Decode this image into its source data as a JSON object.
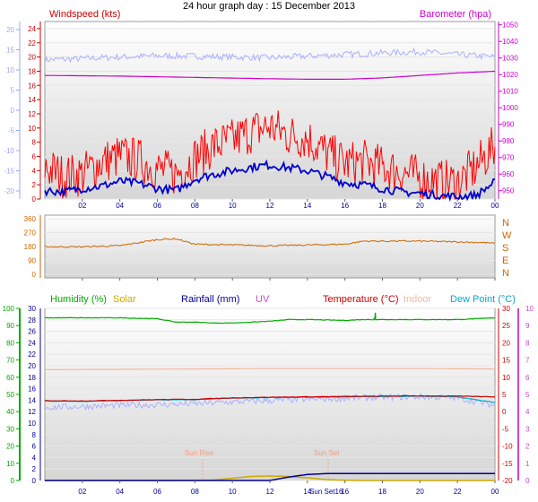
{
  "page_title": "24 hour graph day : 15 December 2013",
  "chart_data": [
    {
      "type": "line",
      "title": "24 hour graph day : 15 December 2013",
      "x_tick_labels": [
        "02",
        "04",
        "06",
        "08",
        "10",
        "12",
        "14",
        "16",
        "18",
        "20",
        "22",
        "00"
      ],
      "left_axis": {
        "label": "Windspeed (kts)",
        "ticks": [
          "24",
          "22",
          "20",
          "18",
          "16",
          "14",
          "12",
          "10",
          "8",
          "6",
          "4",
          "2",
          "0"
        ],
        "ylim": [
          0,
          25
        ]
      },
      "right_axis": {
        "label": "Barometer (hpa)",
        "ticks": [
          "1050",
          "1040",
          "1030",
          "1020",
          "1010",
          "1000",
          "990",
          "980",
          "970",
          "960",
          "950"
        ],
        "ylim": [
          945,
          1052
        ]
      },
      "outer_left_axis": {
        "ticks": [
          "20",
          "15",
          "10",
          "5",
          "0",
          "-5",
          "-10",
          "-15",
          "-20"
        ]
      },
      "series": [
        {
          "name": "Barometer (hpa)",
          "color": "#cc00cc",
          "axis": "right",
          "x": [
            0,
            2,
            4,
            6,
            8,
            10,
            12,
            14,
            16,
            18,
            20,
            22,
            24
          ],
          "y": [
            1019.5,
            1019.3,
            1019.1,
            1018.7,
            1018.3,
            1017.9,
            1017.5,
            1017.2,
            1017.2,
            1018.0,
            1019.5,
            1021.0,
            1022.0
          ]
        },
        {
          "name": "wind_gust",
          "color": "#ff0000",
          "axis": "left",
          "x": [
            0,
            1,
            2,
            3,
            4,
            5,
            6,
            7,
            8,
            9,
            10,
            11,
            12,
            13,
            14,
            15,
            16,
            17,
            18,
            19,
            20,
            21,
            22,
            23,
            24
          ],
          "y": [
            4.5,
            3.2,
            3.5,
            5.2,
            6.0,
            5.5,
            4.2,
            3.5,
            5.8,
            7.5,
            8.2,
            9.5,
            10.2,
            9.0,
            8.6,
            6.5,
            5.0,
            5.3,
            4.5,
            3.8,
            3.0,
            2.5,
            2.3,
            4.5,
            7.5
          ]
        },
        {
          "name": "wind_avg",
          "color": "#0000cc",
          "axis": "left",
          "x": [
            0,
            1,
            2,
            3,
            4,
            5,
            6,
            7,
            8,
            9,
            10,
            11,
            12,
            13,
            14,
            15,
            16,
            17,
            18,
            19,
            20,
            21,
            22,
            23,
            24
          ],
          "y": [
            1.2,
            1.0,
            1.5,
            1.8,
            2.5,
            2.2,
            1.5,
            1.2,
            2.8,
            3.5,
            4.0,
            4.5,
            4.8,
            4.4,
            4.0,
            3.2,
            2.3,
            2.0,
            1.5,
            1.0,
            0.8,
            0.5,
            0.3,
            0.5,
            2.4
          ]
        },
        {
          "name": "outer_scale_trace",
          "color": "#aab0ff",
          "axis": "outer",
          "x": [
            0,
            2,
            4,
            6,
            8,
            10,
            12,
            14,
            16,
            18,
            20,
            22,
            24
          ],
          "y": [
            12.5,
            12.8,
            13.2,
            13.5,
            13.4,
            13.2,
            13.0,
            13.4,
            13.8,
            14.2,
            14.5,
            13.8,
            13.2
          ]
        }
      ]
    },
    {
      "type": "line",
      "left_axis": {
        "ticks": [
          "360",
          "270",
          "180",
          "90",
          "0"
        ],
        "ylim": [
          0,
          360
        ]
      },
      "right_axis": {
        "ticks": [
          "N",
          "W",
          "S",
          "E",
          "N"
        ]
      },
      "series": [
        {
          "name": "wind_direction",
          "color": "#cc6600",
          "x": [
            0,
            2,
            4,
            5,
            6,
            7,
            8,
            10,
            12,
            14,
            16,
            17,
            18,
            20,
            22,
            23.5,
            24
          ],
          "y": [
            178,
            178,
            185,
            205,
            225,
            230,
            195,
            190,
            185,
            190,
            195,
            215,
            215,
            215,
            210,
            205,
            200
          ]
        }
      ]
    },
    {
      "type": "line",
      "legend": [
        {
          "label": "Humidity (%)",
          "color": "#00aa00"
        },
        {
          "label": "Solar",
          "color": "#ccaa00"
        },
        {
          "label": "Rainfall (mm)",
          "color": "#000099"
        },
        {
          "label": "UV",
          "color": "#cc44cc"
        },
        {
          "label": "Temperature (°C)",
          "color": "#cc0000"
        },
        {
          "label": "Indoor",
          "color": "#f4b8a0"
        },
        {
          "label": "Dew Point (°C)",
          "color": "#00aacc"
        }
      ],
      "annotations": [
        "Sun Rise",
        "Sun Set",
        "Sun Set16"
      ],
      "left_axis_1": {
        "ticks": [
          "100",
          "90",
          "80",
          "70",
          "60",
          "50",
          "40",
          "30",
          "20",
          "10",
          "0"
        ]
      },
      "left_axis_2": {
        "ticks": [
          "30",
          "28",
          "26",
          "24",
          "22",
          "20",
          "18",
          "16",
          "14",
          "12",
          "10",
          "8",
          "6",
          "4",
          "2",
          "0"
        ]
      },
      "right_axis_1": {
        "ticks": [
          "30",
          "25",
          "20",
          "15",
          "10",
          "5",
          "0",
          "-5",
          "-10",
          "-15",
          "-20"
        ]
      },
      "right_axis_2": {
        "ticks": [
          "10",
          "9",
          "8",
          "7",
          "6",
          "5",
          "4",
          "3",
          "2",
          "1",
          "0"
        ]
      },
      "series": [
        {
          "name": "Humidity (%)",
          "color": "#00aa00",
          "axis": "humidity",
          "x": [
            0,
            4,
            6,
            7,
            8,
            9,
            10,
            11,
            12,
            13,
            14,
            16,
            17,
            18,
            20,
            22,
            24
          ],
          "y": [
            94.5,
            94.5,
            94.0,
            92.0,
            92.0,
            91.5,
            91.5,
            92.0,
            92.5,
            93.5,
            93.5,
            93.0,
            93.5,
            93.5,
            93.5,
            93.5,
            94.5
          ]
        },
        {
          "name": "Indoor",
          "color": "#f4b8a0",
          "axis": "temp",
          "x": [
            0,
            4,
            8,
            12,
            16,
            20,
            24
          ],
          "y": [
            12.2,
            12.3,
            12.4,
            12.5,
            12.5,
            12.5,
            12.4
          ]
        },
        {
          "name": "Temperature (°C)",
          "color": "#cc0000",
          "axis": "temp",
          "x": [
            0,
            2,
            4,
            6,
            8,
            10,
            12,
            14,
            16,
            18,
            20,
            22,
            24
          ],
          "y": [
            3.2,
            3.1,
            3.3,
            3.5,
            3.6,
            4.0,
            4.2,
            4.3,
            4.4,
            4.5,
            4.6,
            4.5,
            4.3
          ]
        },
        {
          "name": "Dew Point (°C)",
          "color": "#00aacc",
          "axis": "temp",
          "x": [
            0,
            2,
            4,
            6,
            8,
            10,
            12,
            14,
            16,
            18,
            20,
            22,
            24
          ],
          "y": [
            3.1,
            3.0,
            3.2,
            3.4,
            3.5,
            3.9,
            4.1,
            4.2,
            4.3,
            4.4,
            4.5,
            4.3,
            2.6
          ]
        },
        {
          "name": "apparent_trace",
          "color": "#aab0ff",
          "axis": "temp",
          "x": [
            0,
            2,
            4,
            6,
            8,
            10,
            12,
            14,
            16,
            18,
            20,
            22,
            24
          ],
          "y": [
            1.2,
            1.5,
            1.8,
            2.0,
            2.3,
            2.8,
            3.2,
            3.6,
            3.9,
            4.2,
            4.3,
            4.0,
            1.8
          ]
        },
        {
          "name": "Rainfall (mm)",
          "color": "#000099",
          "axis": "rain",
          "x": [
            0,
            9,
            11,
            12,
            13,
            14,
            15,
            17,
            24
          ],
          "y": [
            0,
            0,
            0,
            0,
            0.2,
            0.35,
            0.4,
            0.4,
            0.4
          ]
        },
        {
          "name": "Solar",
          "color": "#ccaa00",
          "axis": "solar",
          "x": [
            0,
            8,
            9,
            10,
            11,
            12,
            13,
            14,
            15,
            16,
            17,
            24
          ],
          "y": [
            0,
            0,
            0.05,
            0.25,
            0.45,
            0.5,
            0.45,
            0.3,
            0.1,
            0.02,
            0,
            0
          ]
        }
      ]
    }
  ]
}
